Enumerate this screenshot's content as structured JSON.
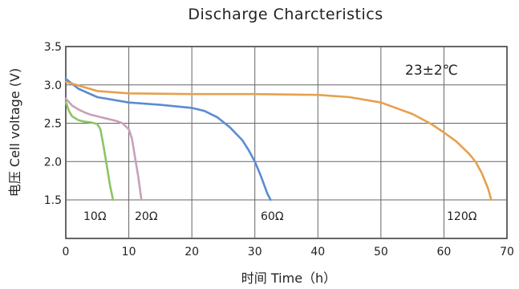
{
  "chart_data": {
    "type": "line",
    "title": "Discharge Charcteristics",
    "xlabel": "时间 Time（h）",
    "ylabel": "电压  Cell voltage (V)",
    "xlim": [
      0,
      70
    ],
    "ylim": [
      1.5,
      3.5
    ],
    "xticks": [
      "0",
      "10",
      "20",
      "30",
      "40",
      "50",
      "60",
      "70"
    ],
    "yticks": [
      "3.5",
      "3.0",
      "2.5",
      "2.0",
      "1.5"
    ],
    "grid": true,
    "condition": "23±2℃",
    "series": [
      {
        "name": "10Ω",
        "color": "#8cc464",
        "x": [
          0,
          0.5,
          1,
          2,
          3,
          4,
          5,
          5.5,
          6,
          6.5,
          7,
          7.5
        ],
        "y": [
          2.78,
          2.66,
          2.59,
          2.54,
          2.52,
          2.51,
          2.49,
          2.42,
          2.2,
          1.95,
          1.7,
          1.5
        ]
      },
      {
        "name": "20Ω",
        "color": "#c9a0b8",
        "x": [
          0,
          1,
          2,
          3,
          4,
          5,
          6,
          7,
          8,
          9,
          10,
          10.5,
          11,
          11.5,
          12
        ],
        "y": [
          2.82,
          2.73,
          2.68,
          2.64,
          2.61,
          2.59,
          2.57,
          2.55,
          2.53,
          2.5,
          2.42,
          2.3,
          2.05,
          1.8,
          1.5
        ]
      },
      {
        "name": "60Ω",
        "color": "#5b8cd0",
        "x": [
          0,
          2,
          5,
          10,
          15,
          20,
          22,
          24,
          26,
          28,
          29,
          30,
          31,
          32,
          32.5
        ],
        "y": [
          3.08,
          2.95,
          2.84,
          2.77,
          2.74,
          2.7,
          2.66,
          2.58,
          2.45,
          2.28,
          2.15,
          2.0,
          1.8,
          1.58,
          1.5
        ]
      },
      {
        "name": "120Ω",
        "color": "#e6a04e",
        "x": [
          0,
          5,
          10,
          20,
          30,
          40,
          45,
          50,
          55,
          58,
          60,
          62,
          64,
          65,
          66,
          67,
          67.5
        ],
        "y": [
          3.04,
          2.92,
          2.89,
          2.88,
          2.88,
          2.87,
          2.84,
          2.77,
          2.62,
          2.49,
          2.38,
          2.26,
          2.1,
          2.0,
          1.85,
          1.65,
          1.5
        ]
      }
    ],
    "annotations": [
      "10Ω",
      "20Ω",
      "60Ω",
      "120Ω"
    ]
  }
}
